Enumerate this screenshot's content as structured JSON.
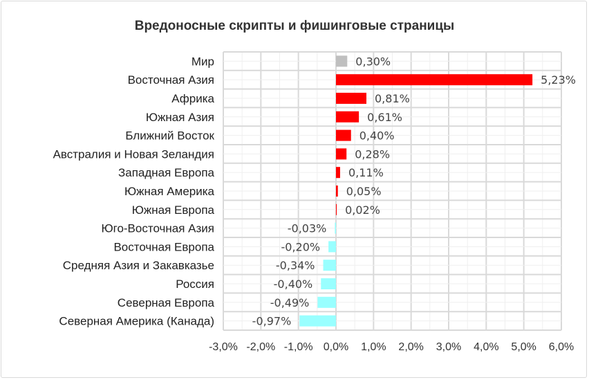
{
  "chart_data": {
    "type": "bar",
    "orientation": "horizontal",
    "title": "Вредоносные скрипты и фишинговые страницы",
    "categories": [
      "Мир",
      "Восточная Азия",
      "Африка",
      "Южная Азия",
      "Ближний Восток",
      "Австралия и Новая Зеландия",
      "Западная Европа",
      "Южная Америка",
      "Южная Европа",
      "Юго-Восточная Азия",
      "Восточная Европа",
      "Средняя Азия и Закавказье",
      "Россия",
      "Северная Европа",
      "Северная Америка (Канада)"
    ],
    "values": [
      0.3,
      5.23,
      0.81,
      0.61,
      0.4,
      0.28,
      0.11,
      0.05,
      0.02,
      -0.03,
      -0.2,
      -0.34,
      -0.4,
      -0.49,
      -0.97
    ],
    "value_labels": [
      "0,30%",
      "5,23%",
      "0,81%",
      "0,61%",
      "0,40%",
      "0,28%",
      "0,11%",
      "0,05%",
      "0,02%",
      "-0,03%",
      "-0,20%",
      "-0,34%",
      "-0,40%",
      "-0,49%",
      "-0,97%"
    ],
    "xlim": [
      -3,
      6
    ],
    "xticks": [
      -3,
      -2,
      -1,
      0,
      1,
      2,
      3,
      4,
      5,
      6
    ],
    "xtick_labels": [
      "-3,0%",
      "-2,0%",
      "-1,0%",
      "0,0%",
      "1,0%",
      "2,0%",
      "3,0%",
      "4,0%",
      "5,0%",
      "6,0%"
    ],
    "grid": true,
    "legend": "none",
    "colors": {
      "world": "#bfbfbf",
      "positive": "#ff0000",
      "negative": "#99ffff"
    }
  }
}
